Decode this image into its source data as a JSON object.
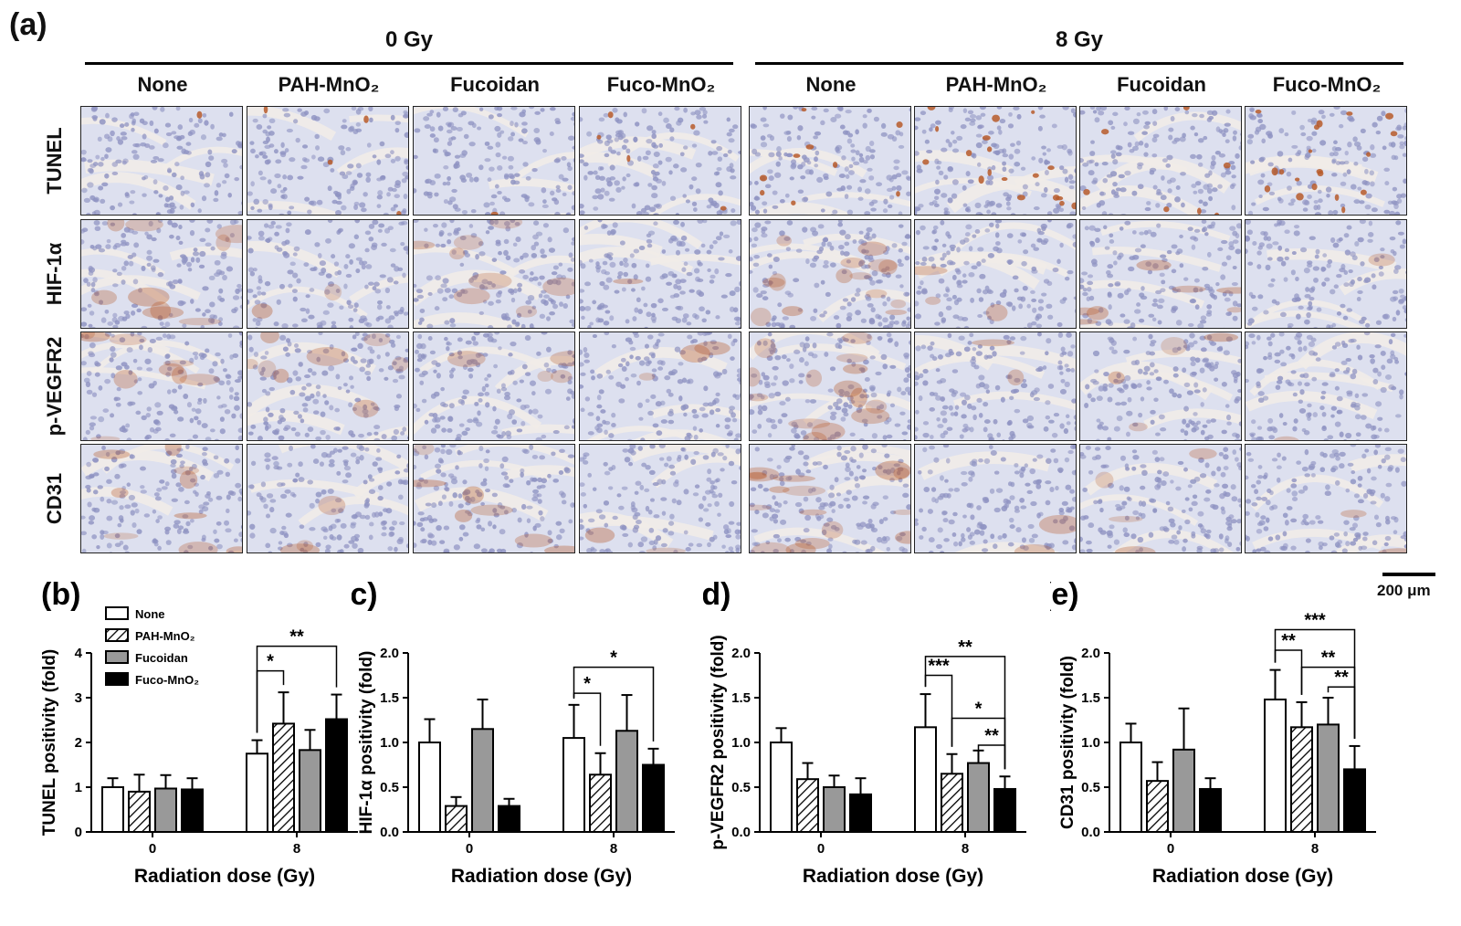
{
  "figure": {
    "panel_a_label": "(a)",
    "dose_groups": [
      "0 Gy",
      "8 Gy"
    ],
    "treatments": [
      "None",
      "PAH-MnO₂",
      "Fucoidan",
      "Fuco-MnO₂"
    ],
    "stains": [
      "TUNEL",
      "HIF-1α",
      "p-VEGFR2",
      "CD31"
    ],
    "scale_bar": "200 μm",
    "colors": {
      "stain_bg": "#dde0ef",
      "nuclei": "#8f93c2",
      "brown": "#b75a2a",
      "stroma": "#f1ece8"
    },
    "icons": [
      "scale-bar"
    ]
  },
  "chart_data": [
    {
      "panel": "(b)",
      "type": "bar",
      "ylabel": "TUNEL positivity (fold)",
      "xlabel": "Radiation dose (Gy)",
      "categories": [
        "0",
        "8"
      ],
      "ylim": [
        0,
        4
      ],
      "yticks": [
        "0",
        "1",
        "2",
        "3",
        "4"
      ],
      "legend": [
        "None",
        "PAH-MnO₂",
        "Fucoidan",
        "Fuco-MnO₂"
      ],
      "legend_position": "top-left",
      "series": [
        {
          "name": "None",
          "values": [
            1.0,
            1.75
          ],
          "errors": [
            0.2,
            0.3
          ],
          "fill": "white"
        },
        {
          "name": "PAH-MnO₂",
          "values": [
            0.9,
            2.42
          ],
          "errors": [
            0.38,
            0.7
          ],
          "fill": "hatched"
        },
        {
          "name": "Fucoidan",
          "values": [
            0.97,
            1.83
          ],
          "errors": [
            0.3,
            0.45
          ],
          "fill": "#999999"
        },
        {
          "name": "Fuco-MnO₂",
          "values": [
            0.95,
            2.52
          ],
          "errors": [
            0.25,
            0.55
          ],
          "fill": "#000000"
        }
      ],
      "annotations": [
        {
          "group": 1,
          "from": 0,
          "to": 1,
          "text": "*",
          "y": 3.6
        },
        {
          "group": 1,
          "from": 0,
          "to": 3,
          "text": "**",
          "y": 4.15
        }
      ]
    },
    {
      "panel": "(c)",
      "type": "bar",
      "ylabel": "HIF-1α positivity (fold)",
      "xlabel": "Radiation dose (Gy)",
      "categories": [
        "0",
        "8"
      ],
      "ylim": [
        0,
        2
      ],
      "yticks": [
        "0.0",
        "0.5",
        "1.0",
        "1.5",
        "2.0"
      ],
      "series": [
        {
          "name": "None",
          "values": [
            1.0,
            1.05
          ],
          "errors": [
            0.26,
            0.37
          ],
          "fill": "white"
        },
        {
          "name": "PAH-MnO₂",
          "values": [
            0.29,
            0.64
          ],
          "errors": [
            0.1,
            0.24
          ],
          "fill": "hatched"
        },
        {
          "name": "Fucoidan",
          "values": [
            1.15,
            1.13
          ],
          "errors": [
            0.33,
            0.4
          ],
          "fill": "#999999"
        },
        {
          "name": "Fuco-MnO₂",
          "values": [
            0.29,
            0.75
          ],
          "errors": [
            0.08,
            0.18
          ],
          "fill": "#000000"
        }
      ],
      "annotations": [
        {
          "group": 1,
          "from": 0,
          "to": 1,
          "text": "*",
          "y": 1.55
        },
        {
          "group": 1,
          "from": 0,
          "to": 3,
          "text": "*",
          "y": 1.84
        }
      ]
    },
    {
      "panel": "(d)",
      "type": "bar",
      "ylabel": "p-VEGFR2 positivity (fold)",
      "xlabel": "Radiation dose (Gy)",
      "categories": [
        "0",
        "8"
      ],
      "ylim": [
        0,
        2
      ],
      "yticks": [
        "0.0",
        "0.5",
        "1.0",
        "1.5",
        "2.0"
      ],
      "series": [
        {
          "name": "None",
          "values": [
            1.0,
            1.17
          ],
          "errors": [
            0.16,
            0.37
          ],
          "fill": "white"
        },
        {
          "name": "PAH-MnO₂",
          "values": [
            0.59,
            0.65
          ],
          "errors": [
            0.18,
            0.22
          ],
          "fill": "hatched"
        },
        {
          "name": "Fucoidan",
          "values": [
            0.5,
            0.77
          ],
          "errors": [
            0.13,
            0.14
          ],
          "fill": "#999999"
        },
        {
          "name": "Fuco-MnO₂",
          "values": [
            0.42,
            0.48
          ],
          "errors": [
            0.18,
            0.14
          ],
          "fill": "#000000"
        }
      ],
      "annotations": [
        {
          "group": 1,
          "from": 0,
          "to": 1,
          "text": "***",
          "y": 1.75
        },
        {
          "group": 1,
          "from": 0,
          "to": 3,
          "text": "**",
          "y": 1.96
        },
        {
          "group": 1,
          "from": 1,
          "to": 3,
          "text": "*",
          "y": 1.27
        },
        {
          "group": 1,
          "from": 2,
          "to": 3,
          "text": "**",
          "y": 0.97
        }
      ]
    },
    {
      "panel": "(e)",
      "type": "bar",
      "ylabel": "CD31 positivity (fold)",
      "xlabel": "Radiation dose (Gy)",
      "categories": [
        "0",
        "8"
      ],
      "ylim": [
        0,
        2
      ],
      "yticks": [
        "0.0",
        "0.5",
        "1.0",
        "1.5",
        "2.0"
      ],
      "series": [
        {
          "name": "None",
          "values": [
            1.0,
            1.48
          ],
          "errors": [
            0.21,
            0.33
          ],
          "fill": "white"
        },
        {
          "name": "PAH-MnO₂",
          "values": [
            0.57,
            1.17
          ],
          "errors": [
            0.21,
            0.28
          ],
          "fill": "hatched"
        },
        {
          "name": "Fucoidan",
          "values": [
            0.92,
            1.2
          ],
          "errors": [
            0.46,
            0.3
          ],
          "fill": "#999999"
        },
        {
          "name": "Fuco-MnO₂",
          "values": [
            0.48,
            0.7
          ],
          "errors": [
            0.12,
            0.26
          ],
          "fill": "#000000"
        }
      ],
      "annotations": [
        {
          "group": 1,
          "from": 0,
          "to": 1,
          "text": "**",
          "y": 2.03
        },
        {
          "group": 1,
          "from": 0,
          "to": 3,
          "text": "***",
          "y": 2.26
        },
        {
          "group": 1,
          "from": 1,
          "to": 3,
          "text": "**",
          "y": 1.84
        },
        {
          "group": 1,
          "from": 2,
          "to": 3,
          "text": "**",
          "y": 1.62
        }
      ]
    }
  ]
}
